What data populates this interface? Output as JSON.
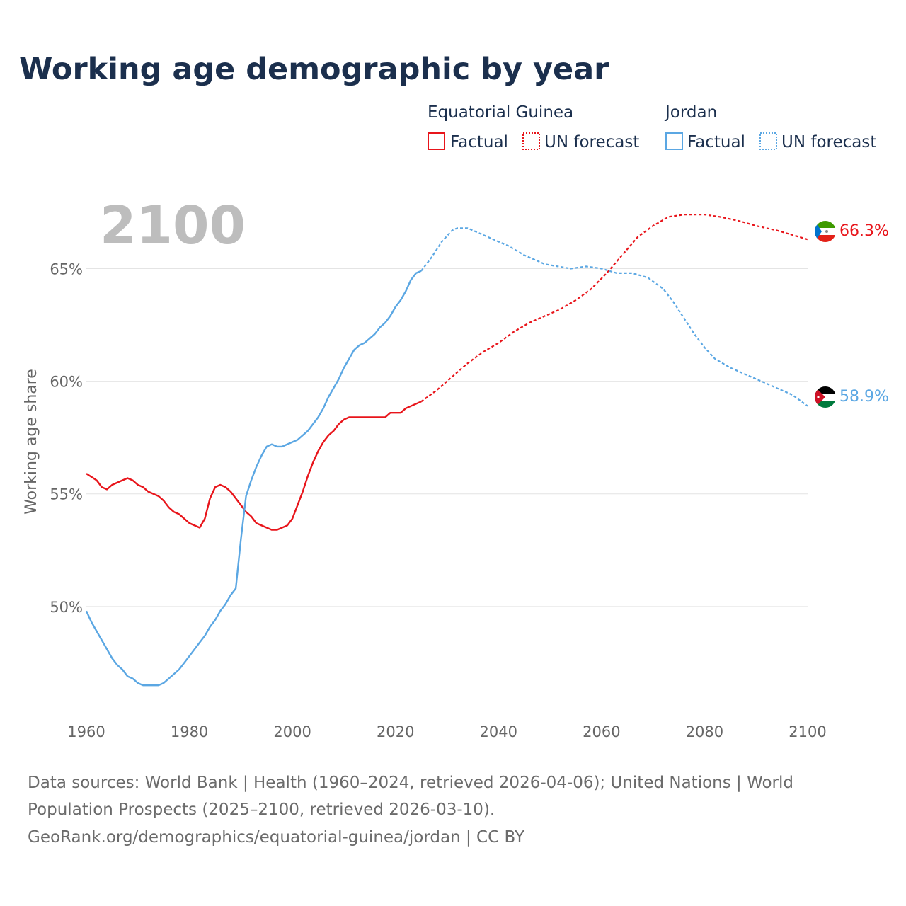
{
  "title": "Working age demographic by year",
  "year_label": "2100",
  "legend": {
    "groups": [
      {
        "name": "Equatorial Guinea",
        "factual": "Factual",
        "forecast": "UN forecast",
        "color": "#e8151b"
      },
      {
        "name": "Jordan",
        "factual": "Factual",
        "forecast": "UN forecast",
        "color": "#5ba7e3"
      }
    ]
  },
  "footer": {
    "line1": "Data sources: World Bank | Health (1960–2024, retrieved 2026-04-06); United Nations | World",
    "line2": "Population Prospects (2025–2100, retrieved 2026-03-10).",
    "line3": "GeoRank.org/demographics/equatorial-guinea/jordan | CC BY"
  },
  "chart_data": {
    "type": "line",
    "title": "Working age demographic by year",
    "xlabel": "",
    "ylabel": "Working age share",
    "xlim": [
      1960,
      2100
    ],
    "ylim": [
      45.5,
      67.5
    ],
    "x_ticks": [
      1960,
      1980,
      2000,
      2020,
      2040,
      2060,
      2080,
      2100
    ],
    "x_tick_labels": [
      "1960",
      "1980",
      "2000",
      "2020",
      "2040",
      "2060",
      "2080",
      "2100"
    ],
    "y_ticks": [
      50,
      55,
      60,
      65
    ],
    "y_tick_labels": [
      "50%",
      "55%",
      "60%",
      "65%"
    ],
    "grid": true,
    "forecast_start": 2025,
    "series": [
      {
        "name": "Equatorial Guinea",
        "color": "#e8151b",
        "end_label": "66.3%",
        "flag": "equatorial-guinea-flag",
        "points": [
          [
            1960,
            55.9
          ],
          [
            1962,
            55.6
          ],
          [
            1963,
            55.3
          ],
          [
            1964,
            55.2
          ],
          [
            1965,
            55.4
          ],
          [
            1967,
            55.6
          ],
          [
            1968,
            55.7
          ],
          [
            1969,
            55.6
          ],
          [
            1970,
            55.4
          ],
          [
            1971,
            55.3
          ],
          [
            1972,
            55.1
          ],
          [
            1974,
            54.9
          ],
          [
            1975,
            54.7
          ],
          [
            1976,
            54.4
          ],
          [
            1977,
            54.2
          ],
          [
            1978,
            54.1
          ],
          [
            1980,
            53.7
          ],
          [
            1982,
            53.5
          ],
          [
            1983,
            53.9
          ],
          [
            1984,
            54.8
          ],
          [
            1985,
            55.3
          ],
          [
            1986,
            55.4
          ],
          [
            1987,
            55.3
          ],
          [
            1988,
            55.1
          ],
          [
            1990,
            54.5
          ],
          [
            1991,
            54.2
          ],
          [
            1992,
            54.0
          ],
          [
            1993,
            53.7
          ],
          [
            1995,
            53.5
          ],
          [
            1996,
            53.4
          ],
          [
            1997,
            53.4
          ],
          [
            1999,
            53.6
          ],
          [
            2000,
            53.9
          ],
          [
            2001,
            54.5
          ],
          [
            2002,
            55.1
          ],
          [
            2003,
            55.8
          ],
          [
            2004,
            56.4
          ],
          [
            2005,
            56.9
          ],
          [
            2006,
            57.3
          ],
          [
            2007,
            57.6
          ],
          [
            2008,
            57.8
          ],
          [
            2009,
            58.1
          ],
          [
            2010,
            58.3
          ],
          [
            2011,
            58.4
          ],
          [
            2018,
            58.4
          ],
          [
            2019,
            58.6
          ],
          [
            2021,
            58.6
          ],
          [
            2022,
            58.8
          ],
          [
            2025,
            59.1
          ],
          [
            2028,
            59.6
          ],
          [
            2031,
            60.2
          ],
          [
            2034,
            60.8
          ],
          [
            2037,
            61.3
          ],
          [
            2040,
            61.7
          ],
          [
            2043,
            62.2
          ],
          [
            2046,
            62.6
          ],
          [
            2049,
            62.9
          ],
          [
            2052,
            63.2
          ],
          [
            2055,
            63.6
          ],
          [
            2058,
            64.1
          ],
          [
            2061,
            64.8
          ],
          [
            2064,
            65.6
          ],
          [
            2067,
            66.4
          ],
          [
            2070,
            66.9
          ],
          [
            2073,
            67.3
          ],
          [
            2076,
            67.4
          ],
          [
            2080,
            67.4
          ],
          [
            2083,
            67.3
          ],
          [
            2087,
            67.1
          ],
          [
            2090,
            66.9
          ],
          [
            2094,
            66.7
          ],
          [
            2097,
            66.5
          ],
          [
            2100,
            66.3
          ]
        ]
      },
      {
        "name": "Jordan",
        "color": "#5ba7e3",
        "end_label": "58.9%",
        "flag": "jordan-flag",
        "points": [
          [
            1960,
            49.8
          ],
          [
            1961,
            49.3
          ],
          [
            1963,
            48.5
          ],
          [
            1965,
            47.7
          ],
          [
            1966,
            47.4
          ],
          [
            1967,
            47.2
          ],
          [
            1968,
            46.9
          ],
          [
            1969,
            46.8
          ],
          [
            1970,
            46.6
          ],
          [
            1971,
            46.5
          ],
          [
            1974,
            46.5
          ],
          [
            1975,
            46.6
          ],
          [
            1976,
            46.8
          ],
          [
            1978,
            47.2
          ],
          [
            1980,
            47.8
          ],
          [
            1982,
            48.4
          ],
          [
            1983,
            48.7
          ],
          [
            1984,
            49.1
          ],
          [
            1985,
            49.4
          ],
          [
            1986,
            49.8
          ],
          [
            1987,
            50.1
          ],
          [
            1988,
            50.5
          ],
          [
            1989,
            50.8
          ],
          [
            1990,
            53.0
          ],
          [
            1991,
            54.9
          ],
          [
            1992,
            55.6
          ],
          [
            1993,
            56.2
          ],
          [
            1994,
            56.7
          ],
          [
            1995,
            57.1
          ],
          [
            1996,
            57.2
          ],
          [
            1997,
            57.1
          ],
          [
            1998,
            57.1
          ],
          [
            2000,
            57.3
          ],
          [
            2001,
            57.4
          ],
          [
            2003,
            57.8
          ],
          [
            2005,
            58.4
          ],
          [
            2006,
            58.8
          ],
          [
            2007,
            59.3
          ],
          [
            2009,
            60.1
          ],
          [
            2010,
            60.6
          ],
          [
            2011,
            61.0
          ],
          [
            2012,
            61.4
          ],
          [
            2013,
            61.6
          ],
          [
            2014,
            61.7
          ],
          [
            2015,
            61.9
          ],
          [
            2016,
            62.1
          ],
          [
            2017,
            62.4
          ],
          [
            2018,
            62.6
          ],
          [
            2019,
            62.9
          ],
          [
            2020,
            63.3
          ],
          [
            2021,
            63.6
          ],
          [
            2022,
            64.0
          ],
          [
            2023,
            64.5
          ],
          [
            2024,
            64.8
          ],
          [
            2025,
            64.9
          ],
          [
            2027,
            65.5
          ],
          [
            2029,
            66.2
          ],
          [
            2031,
            66.7
          ],
          [
            2032,
            66.8
          ],
          [
            2034,
            66.8
          ],
          [
            2036,
            66.6
          ],
          [
            2039,
            66.3
          ],
          [
            2042,
            66.0
          ],
          [
            2045,
            65.6
          ],
          [
            2049,
            65.2
          ],
          [
            2054,
            65.0
          ],
          [
            2057,
            65.1
          ],
          [
            2060,
            65.0
          ],
          [
            2063,
            64.8
          ],
          [
            2066,
            64.8
          ],
          [
            2069,
            64.6
          ],
          [
            2072,
            64.1
          ],
          [
            2074,
            63.5
          ],
          [
            2076,
            62.8
          ],
          [
            2078,
            62.1
          ],
          [
            2080,
            61.5
          ],
          [
            2082,
            61.0
          ],
          [
            2085,
            60.6
          ],
          [
            2088,
            60.3
          ],
          [
            2091,
            60.0
          ],
          [
            2094,
            59.7
          ],
          [
            2097,
            59.4
          ],
          [
            2100,
            58.9
          ]
        ]
      }
    ]
  }
}
